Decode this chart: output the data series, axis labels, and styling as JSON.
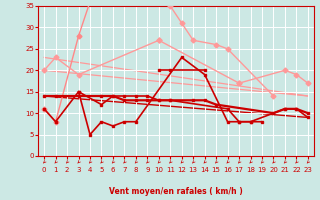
{
  "bg_color": "#cce8e4",
  "grid_color": "#ffffff",
  "xlabel": "Vent moyen/en rafales ( km/h )",
  "xlabel_color": "#cc0000",
  "tick_color": "#cc0000",
  "xmin": -0.5,
  "xmax": 23.5,
  "ymin": 0,
  "ymax": 35,
  "yticks": [
    0,
    5,
    10,
    15,
    20,
    25,
    30,
    35
  ],
  "xticks": [
    0,
    1,
    2,
    3,
    4,
    5,
    6,
    7,
    8,
    9,
    10,
    11,
    12,
    13,
    14,
    15,
    16,
    17,
    18,
    19,
    20,
    21,
    22,
    23
  ],
  "lines": [
    {
      "points": [
        [
          0,
          11
        ],
        [
          1,
          8
        ],
        [
          3,
          28
        ],
        [
          4,
          36
        ]
      ],
      "color": "#ff8888",
      "lw": 1.0,
      "marker": "D",
      "ms": 2.5
    },
    {
      "points": [
        [
          0,
          20
        ],
        [
          1,
          23
        ],
        [
          3,
          19
        ],
        [
          10,
          27
        ]
      ],
      "color": "#ff9999",
      "lw": 1.0,
      "marker": "D",
      "ms": 2.5
    },
    {
      "points": [
        [
          11,
          35
        ],
        [
          12,
          31
        ],
        [
          13,
          27
        ],
        [
          15,
          26
        ],
        [
          16,
          25
        ],
        [
          20,
          14
        ]
      ],
      "color": "#ff9999",
      "lw": 1.0,
      "marker": "D",
      "ms": 2.5
    },
    {
      "points": [
        [
          17,
          17
        ],
        [
          21,
          20
        ],
        [
          22,
          19
        ],
        [
          23,
          17
        ]
      ],
      "color": "#ff9999",
      "lw": 1.0,
      "marker": "D",
      "ms": 2.5
    },
    {
      "points": [
        [
          10,
          27
        ],
        [
          17,
          17
        ]
      ],
      "color": "#ff9999",
      "lw": 1.0,
      "marker": "D",
      "ms": 2.5
    },
    {
      "points": [
        [
          0,
          11
        ],
        [
          1,
          8
        ],
        [
          3,
          15
        ],
        [
          4,
          5
        ],
        [
          5,
          8
        ],
        [
          6,
          7
        ],
        [
          7,
          8
        ],
        [
          8,
          8
        ],
        [
          12,
          23
        ],
        [
          14,
          19
        ],
        [
          16,
          8
        ],
        [
          17,
          8
        ],
        [
          18,
          8
        ],
        [
          21,
          11
        ],
        [
          22,
          11
        ],
        [
          23,
          9
        ]
      ],
      "color": "#cc0000",
      "lw": 1.2,
      "marker": "s",
      "ms": 2.0
    },
    {
      "points": [
        [
          0,
          14
        ],
        [
          1,
          14
        ],
        [
          3,
          14
        ],
        [
          5,
          14
        ],
        [
          6,
          14
        ],
        [
          7,
          13
        ],
        [
          8,
          13
        ],
        [
          9,
          13
        ],
        [
          10,
          13
        ],
        [
          11,
          13
        ],
        [
          13,
          13
        ],
        [
          14,
          13
        ],
        [
          15,
          12
        ],
        [
          20,
          10
        ],
        [
          21,
          11
        ],
        [
          22,
          11
        ],
        [
          23,
          10
        ]
      ],
      "color": "#cc0000",
      "lw": 1.6,
      "marker": "s",
      "ms": 2.0
    },
    {
      "points": [
        [
          3,
          15
        ],
        [
          5,
          12
        ],
        [
          6,
          14
        ],
        [
          7,
          14
        ],
        [
          8,
          14
        ],
        [
          9,
          14
        ],
        [
          10,
          13
        ],
        [
          11,
          13
        ],
        [
          16,
          11
        ],
        [
          17,
          8
        ],
        [
          18,
          8
        ],
        [
          19,
          8
        ]
      ],
      "color": "#cc0000",
      "lw": 1.2,
      "marker": "s",
      "ms": 2.0
    },
    {
      "points": [
        [
          10,
          20
        ],
        [
          11,
          20
        ],
        [
          14,
          20
        ]
      ],
      "color": "#cc0000",
      "lw": 1.2,
      "marker": "s",
      "ms": 2.0
    }
  ],
  "trend_lines": [
    {
      "x": [
        0,
        23
      ],
      "y": [
        23,
        14
      ],
      "color": "#ff9999",
      "lw": 0.9
    },
    {
      "x": [
        0,
        23
      ],
      "y": [
        20,
        14
      ],
      "color": "#ff9999",
      "lw": 0.9
    },
    {
      "x": [
        0,
        23
      ],
      "y": [
        14,
        9
      ],
      "color": "#cc0000",
      "lw": 1.0
    }
  ]
}
